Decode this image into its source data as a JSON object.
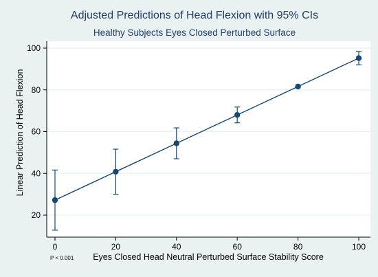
{
  "chart_data": {
    "type": "line",
    "title": "Adjusted Predictions of Head Flexion with 95% CIs",
    "subtitle": "Healthy Subjects Eyes Closed Perturbed Surface",
    "xlabel": "Eyes Closed Head Neutral Perturbed Surface Stability Score",
    "ylabel": "Linear Prediction of Head Flexion",
    "xlim": [
      0,
      100
    ],
    "ylim": [
      20,
      100
    ],
    "xticks": [
      0,
      20,
      40,
      60,
      80,
      100
    ],
    "yticks": [
      20,
      40,
      60,
      80,
      100
    ],
    "grid": true,
    "legend": "none",
    "annotation": "P < 0.001",
    "series": [
      {
        "x": [
          0,
          20,
          40,
          60,
          80,
          100
        ],
        "y": [
          27.2,
          40.8,
          54.4,
          68.0,
          81.6,
          95.2
        ],
        "ci_low": [
          12.8,
          30.0,
          47.0,
          64.2,
          81.6,
          92.0
        ],
        "ci_high": [
          41.6,
          51.6,
          61.8,
          71.8,
          81.6,
          98.4
        ]
      }
    ],
    "colors": {
      "series": "#1a476f",
      "background": "#eaf1f3",
      "plot_area": "#ffffff",
      "grid": "#eaf1f3",
      "title": "#1f3f66"
    }
  }
}
